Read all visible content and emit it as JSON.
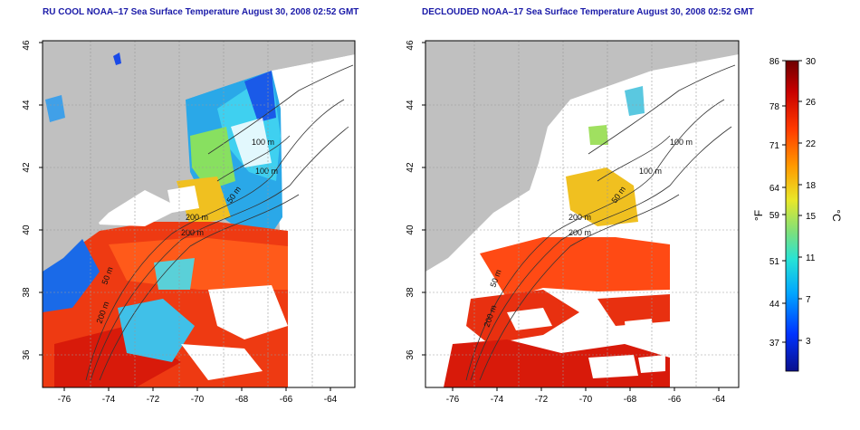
{
  "panels": [
    {
      "title": "RU COOL NOAA–17 Sea Surface Temperature August 30, 2008 02:52 GMT",
      "xticks": [
        "-76",
        "-74",
        "-72",
        "-70",
        "-68",
        "-66",
        "-64"
      ],
      "yticks": [
        "36",
        "38",
        "40",
        "42",
        "44",
        "46"
      ],
      "contours": [
        "100 m",
        "100 m",
        "200 m",
        "200 m",
        "50 m",
        "50 m",
        "200 m"
      ]
    },
    {
      "title": "DECLOUDED NOAA–17 Sea Surface Temperature August 30, 2008 02:52 GMT",
      "xticks": [
        "-76",
        "-74",
        "-72",
        "-70",
        "-68",
        "-66",
        "-64"
      ],
      "yticks": [
        "36",
        "38",
        "40",
        "42",
        "44",
        "46"
      ],
      "contours": [
        "100 m",
        "100 m",
        "200 m",
        "200 m",
        "50 m",
        "50 m",
        "200 m"
      ]
    }
  ],
  "colorbar": {
    "fahrenheit_unit": "°F",
    "celsius_unit": "°C",
    "fahrenheit_ticks": [
      "86",
      "78",
      "71",
      "64",
      "59",
      "51",
      "44",
      "37"
    ],
    "celsius_ticks": [
      "30",
      "26",
      "22",
      "18",
      "15",
      "11",
      "7",
      "3"
    ],
    "colors": [
      "#0a0f8c",
      "#0033ff",
      "#00a5ff",
      "#27e3d6",
      "#7fe07a",
      "#e8e82a",
      "#ff9a00",
      "#ff3a00",
      "#c80000",
      "#6e0000"
    ]
  },
  "map": {
    "land_color": "#c0c0c0",
    "cloud_color": "#ffffff",
    "lon_range": [
      -77,
      -63
    ],
    "lat_range": [
      35,
      46
    ]
  }
}
